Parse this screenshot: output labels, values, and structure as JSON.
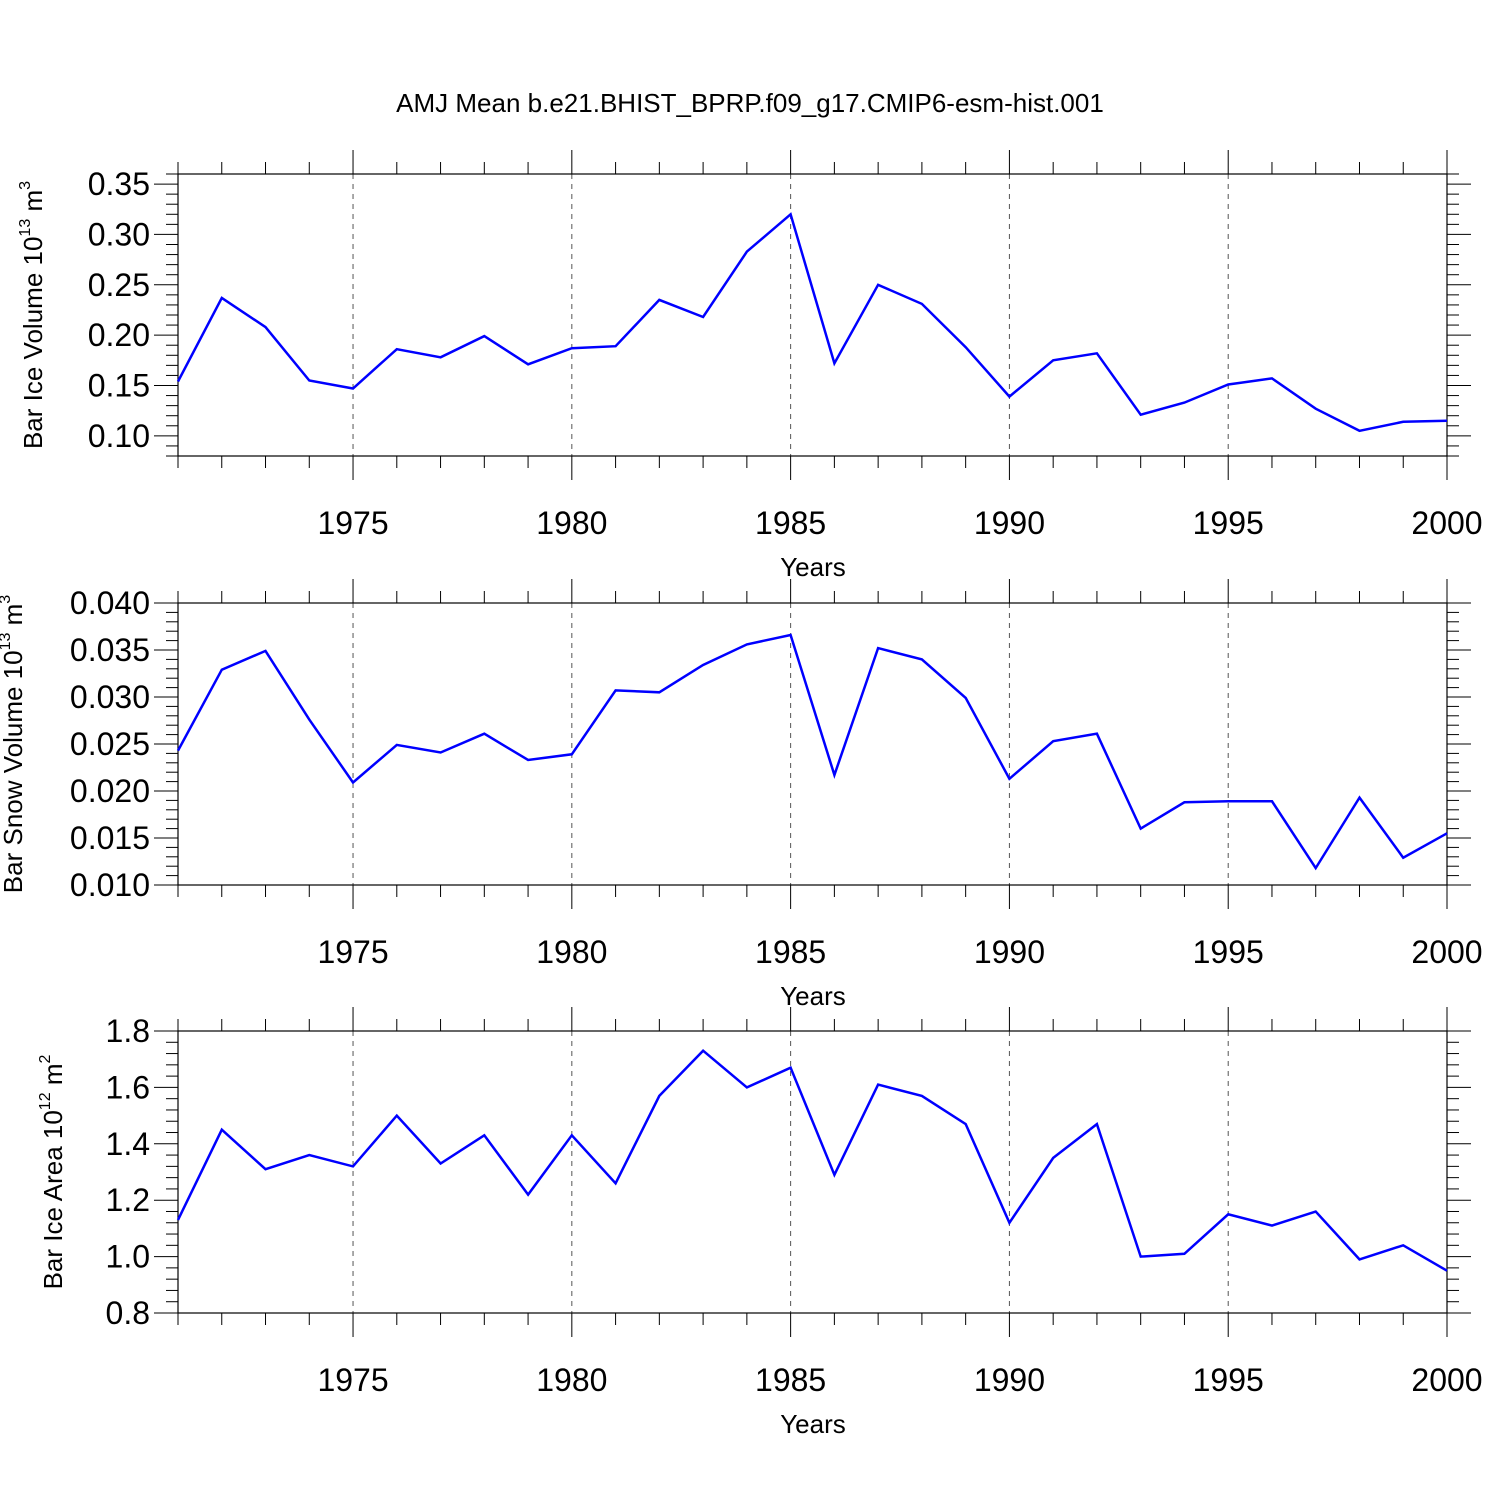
{
  "figure": {
    "title": "AMJ Mean b.e21.BHIST_BPRP.f09_g17.CMIP6-esm-hist.001"
  },
  "chart_data": [
    {
      "type": "line",
      "xlabel": "Years",
      "ylabel": {
        "text": "Bar Ice Volume 10",
        "exp": "13",
        "unit": " m",
        "unit_exp": "3"
      },
      "xlim": [
        1971,
        2000
      ],
      "ylim": [
        0.08,
        0.36
      ],
      "yticks": [
        0.1,
        0.15,
        0.2,
        0.25,
        0.3,
        0.35
      ],
      "ytick_labels": [
        "0.10",
        "0.15",
        "0.20",
        "0.25",
        "0.30",
        "0.35"
      ],
      "xticks": [
        1975,
        1980,
        1985,
        1990,
        1995,
        2000
      ],
      "xtick_labels": [
        "1975",
        "1980",
        "1985",
        "1990",
        "1995",
        "2000"
      ],
      "grid": "vertical dashed at major ticks",
      "line_color": "#0000ff",
      "x": [
        1971,
        1972,
        1973,
        1974,
        1975,
        1976,
        1977,
        1978,
        1979,
        1980,
        1981,
        1982,
        1983,
        1984,
        1985,
        1986,
        1987,
        1988,
        1989,
        1990,
        1991,
        1992,
        1993,
        1994,
        1995,
        1996,
        1997,
        1998,
        1999,
        2000
      ],
      "values": [
        0.154,
        0.237,
        0.208,
        0.155,
        0.147,
        0.186,
        0.178,
        0.199,
        0.171,
        0.187,
        0.189,
        0.235,
        0.218,
        0.283,
        0.32,
        0.172,
        0.25,
        0.231,
        0.188,
        0.139,
        0.175,
        0.182,
        0.121,
        0.133,
        0.151,
        0.157,
        0.127,
        0.105,
        0.114,
        0.115
      ]
    },
    {
      "type": "line",
      "xlabel": "Years",
      "ylabel": {
        "text": "Bar Snow Volume 10",
        "exp": "13",
        "unit": " m",
        "unit_exp": "3"
      },
      "xlim": [
        1971,
        2000
      ],
      "ylim": [
        0.01,
        0.04
      ],
      "yticks": [
        0.01,
        0.015,
        0.02,
        0.025,
        0.03,
        0.035,
        0.04
      ],
      "ytick_labels": [
        "0.010",
        "0.015",
        "0.020",
        "0.025",
        "0.030",
        "0.035",
        "0.040"
      ],
      "xticks": [
        1975,
        1980,
        1985,
        1990,
        1995,
        2000
      ],
      "xtick_labels": [
        "1975",
        "1980",
        "1985",
        "1990",
        "1995",
        "2000"
      ],
      "grid": "vertical dashed at major ticks",
      "line_color": "#0000ff",
      "x": [
        1971,
        1972,
        1973,
        1974,
        1975,
        1976,
        1977,
        1978,
        1979,
        1980,
        1981,
        1982,
        1983,
        1984,
        1985,
        1986,
        1987,
        1988,
        1989,
        1990,
        1991,
        1992,
        1993,
        1994,
        1995,
        1996,
        1997,
        1998,
        1999,
        2000
      ],
      "values": [
        0.0243,
        0.0329,
        0.0349,
        0.0276,
        0.0209,
        0.0249,
        0.0241,
        0.0261,
        0.0233,
        0.0239,
        0.0307,
        0.0305,
        0.0334,
        0.0356,
        0.0366,
        0.0217,
        0.0352,
        0.034,
        0.0299,
        0.0213,
        0.0253,
        0.0261,
        0.016,
        0.0188,
        0.0189,
        0.0189,
        0.0118,
        0.0193,
        0.0129,
        0.0155
      ]
    },
    {
      "type": "line",
      "xlabel": "Years",
      "ylabel": {
        "text": "Bar Ice Area 10",
        "exp": "12",
        "unit": " m",
        "unit_exp": "2"
      },
      "xlim": [
        1971,
        2000
      ],
      "ylim": [
        0.8,
        1.8
      ],
      "yticks": [
        0.8,
        1.0,
        1.2,
        1.4,
        1.6,
        1.8
      ],
      "ytick_labels": [
        "0.8",
        "1.0",
        "1.2",
        "1.4",
        "1.6",
        "1.8"
      ],
      "xticks": [
        1975,
        1980,
        1985,
        1990,
        1995,
        2000
      ],
      "xtick_labels": [
        "1975",
        "1980",
        "1985",
        "1990",
        "1995",
        "2000"
      ],
      "grid": "vertical dashed at major ticks",
      "line_color": "#0000ff",
      "x": [
        1971,
        1972,
        1973,
        1974,
        1975,
        1976,
        1977,
        1978,
        1979,
        1980,
        1981,
        1982,
        1983,
        1984,
        1985,
        1986,
        1987,
        1988,
        1989,
        1990,
        1991,
        1992,
        1993,
        1994,
        1995,
        1996,
        1997,
        1998,
        1999,
        2000
      ],
      "values": [
        1.13,
        1.45,
        1.31,
        1.36,
        1.32,
        1.5,
        1.33,
        1.43,
        1.22,
        1.43,
        1.26,
        1.57,
        1.73,
        1.6,
        1.67,
        1.29,
        1.61,
        1.57,
        1.47,
        1.12,
        1.35,
        1.47,
        1.0,
        1.01,
        1.15,
        1.11,
        1.16,
        0.99,
        1.04,
        0.95
      ]
    }
  ]
}
